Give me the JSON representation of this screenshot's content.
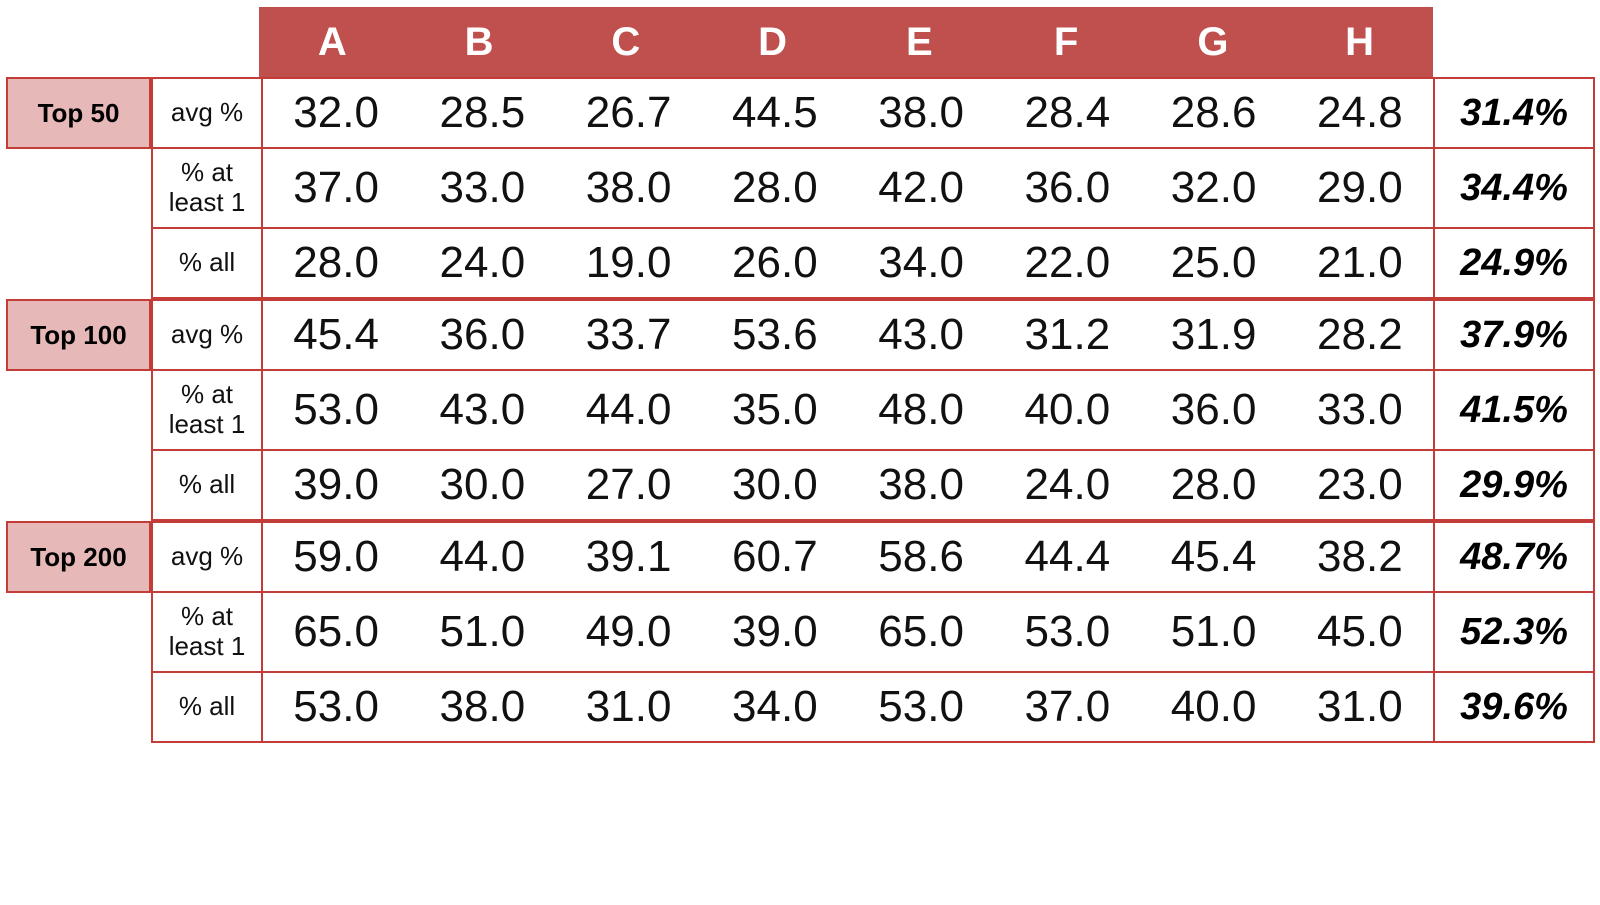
{
  "chart_data": {
    "type": "table",
    "columns": [
      "A",
      "B",
      "C",
      "D",
      "E",
      "F",
      "G",
      "H"
    ],
    "metrics": [
      "avg %",
      "% at least 1",
      "% all"
    ],
    "groups": [
      {
        "label": "Top 50",
        "rows": [
          {
            "metric": "avg %",
            "values": [
              "32.0",
              "28.5",
              "26.7",
              "44.5",
              "38.0",
              "28.4",
              "28.6",
              "24.8"
            ],
            "summary": "31.4%"
          },
          {
            "metric": "% at least 1",
            "values": [
              "37.0",
              "33.0",
              "38.0",
              "28.0",
              "42.0",
              "36.0",
              "32.0",
              "29.0"
            ],
            "summary": "34.4%"
          },
          {
            "metric": "% all",
            "values": [
              "28.0",
              "24.0",
              "19.0",
              "26.0",
              "34.0",
              "22.0",
              "25.0",
              "21.0"
            ],
            "summary": "24.9%"
          }
        ]
      },
      {
        "label": "Top 100",
        "rows": [
          {
            "metric": "avg %",
            "values": [
              "45.4",
              "36.0",
              "33.7",
              "53.6",
              "43.0",
              "31.2",
              "31.9",
              "28.2"
            ],
            "summary": "37.9%"
          },
          {
            "metric": "% at least 1",
            "values": [
              "53.0",
              "43.0",
              "44.0",
              "35.0",
              "48.0",
              "40.0",
              "36.0",
              "33.0"
            ],
            "summary": "41.5%"
          },
          {
            "metric": "% all",
            "values": [
              "39.0",
              "30.0",
              "27.0",
              "30.0",
              "38.0",
              "24.0",
              "28.0",
              "23.0"
            ],
            "summary": "29.9%"
          }
        ]
      },
      {
        "label": "Top 200",
        "rows": [
          {
            "metric": "avg %",
            "values": [
              "59.0",
              "44.0",
              "39.1",
              "60.7",
              "58.6",
              "44.4",
              "45.4",
              "38.2"
            ],
            "summary": "48.7%"
          },
          {
            "metric": "% at least 1",
            "values": [
              "65.0",
              "51.0",
              "49.0",
              "39.0",
              "65.0",
              "53.0",
              "51.0",
              "45.0"
            ],
            "summary": "52.3%"
          },
          {
            "metric": "% all",
            "values": [
              "53.0",
              "38.0",
              "31.0",
              "34.0",
              "53.0",
              "37.0",
              "40.0",
              "31.0"
            ],
            "summary": "39.6%"
          }
        ]
      }
    ],
    "layout": {
      "grid": "off",
      "legend": "none",
      "header_row_on_first_group_only": true
    },
    "colors": {
      "header_bg": "#C0504D",
      "header_text": "#FFFFFF",
      "group_label_bg": "#E6B8B7",
      "border": "#C43C38",
      "value_text": "#111111"
    }
  }
}
